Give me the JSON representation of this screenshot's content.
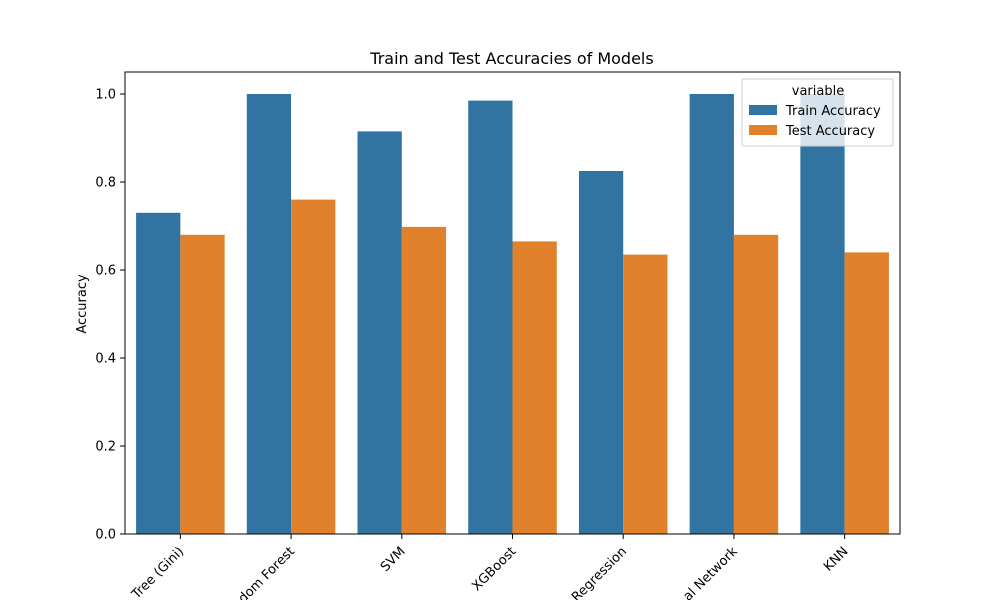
{
  "chart_data": {
    "type": "bar",
    "title": "Train and Test Accuracies of Models",
    "xlabel": "",
    "ylabel": "Accuracy",
    "ylim": [
      0,
      1.05
    ],
    "yticks": [
      "0.0",
      "0.2",
      "0.4",
      "0.6",
      "0.8",
      "1.0"
    ],
    "ytick_values": [
      0.0,
      0.2,
      0.4,
      0.6,
      0.8,
      1.0
    ],
    "categories": [
      "Tree (Gini)",
      "dom Forest",
      "SVM",
      "XGBoost",
      "Regression",
      "al Network",
      "KNN"
    ],
    "series": [
      {
        "name": "Train Accuracy",
        "color": "#3274a1",
        "values": [
          0.73,
          1.0,
          0.915,
          0.985,
          0.825,
          1.0,
          1.0
        ]
      },
      {
        "name": "Test Accuracy",
        "color": "#e1812c",
        "values": [
          0.68,
          0.76,
          0.698,
          0.665,
          0.635,
          0.68,
          0.64
        ]
      }
    ],
    "legend": {
      "title": "variable",
      "placement": "top-right"
    },
    "grid": false
  }
}
